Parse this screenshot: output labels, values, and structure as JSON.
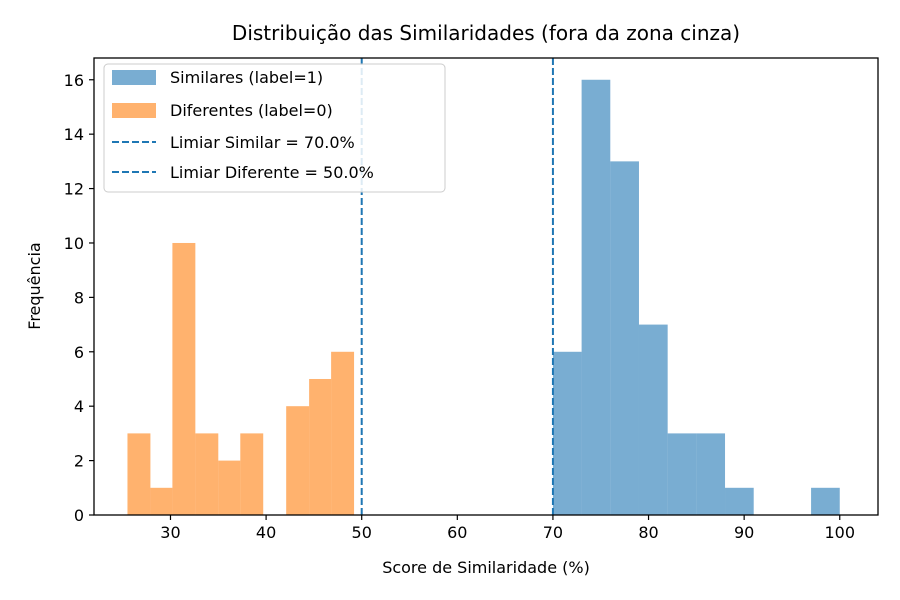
{
  "chart_data": {
    "type": "histogram",
    "title": "Distribuição das Similaridades (fora da zona cinza)",
    "xlabel": "Score de Similaridade (%)",
    "ylabel": "Frequência",
    "xlim": [
      22,
      104
    ],
    "ylim": [
      0,
      16.8
    ],
    "xticks": [
      30,
      40,
      50,
      60,
      70,
      80,
      90,
      100
    ],
    "yticks": [
      0,
      2,
      4,
      6,
      8,
      10,
      12,
      14,
      16
    ],
    "grid": false,
    "legend_position": "top-left",
    "series": [
      {
        "name": "Similares (label=1)",
        "color": "#1f77b4",
        "opacity": 0.6,
        "bins": [
          {
            "x0": 70.0,
            "x1": 73.0,
            "count": 6
          },
          {
            "x0": 73.0,
            "x1": 76.0,
            "count": 16
          },
          {
            "x0": 76.0,
            "x1": 79.0,
            "count": 13
          },
          {
            "x0": 79.0,
            "x1": 82.0,
            "count": 7
          },
          {
            "x0": 82.0,
            "x1": 85.0,
            "count": 3
          },
          {
            "x0": 85.0,
            "x1": 88.0,
            "count": 3
          },
          {
            "x0": 88.0,
            "x1": 91.0,
            "count": 1
          },
          {
            "x0": 91.0,
            "x1": 94.0,
            "count": 0
          },
          {
            "x0": 94.0,
            "x1": 97.0,
            "count": 0
          },
          {
            "x0": 97.0,
            "x1": 100.0,
            "count": 1
          }
        ]
      },
      {
        "name": "Diferentes (label=0)",
        "color": "#ff7f0e",
        "opacity": 0.6,
        "bins": [
          {
            "x0": 25.5,
            "x1": 27.9,
            "count": 3
          },
          {
            "x0": 27.9,
            "x1": 30.2,
            "count": 1
          },
          {
            "x0": 30.2,
            "x1": 32.6,
            "count": 10
          },
          {
            "x0": 32.6,
            "x1": 35.0,
            "count": 3
          },
          {
            "x0": 35.0,
            "x1": 37.3,
            "count": 2
          },
          {
            "x0": 37.3,
            "x1": 39.7,
            "count": 3
          },
          {
            "x0": 39.7,
            "x1": 42.1,
            "count": 0
          },
          {
            "x0": 42.1,
            "x1": 44.5,
            "count": 4
          },
          {
            "x0": 44.5,
            "x1": 46.8,
            "count": 5
          },
          {
            "x0": 46.8,
            "x1": 49.2,
            "count": 6
          }
        ]
      }
    ],
    "threshold_lines": [
      {
        "name": "Limiar Similar = 70.0%",
        "x": 70.0,
        "color": "#1f77b4",
        "style": "dashed"
      },
      {
        "name": "Limiar Diferente = 50.0%",
        "x": 50.0,
        "color": "#1f77b4",
        "style": "dashed"
      }
    ]
  }
}
